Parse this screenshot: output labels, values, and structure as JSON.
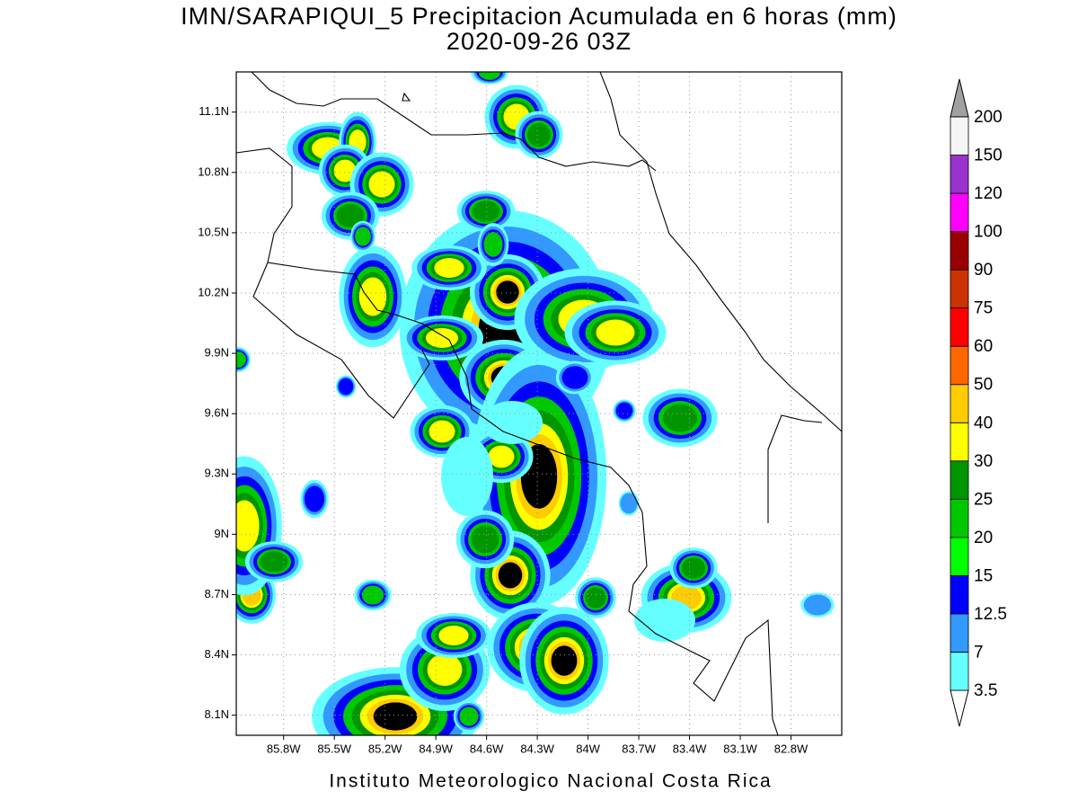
{
  "title": "IMN/SARAPIQUI_5 Precipitacion Acumulada en 6 horas (mm)",
  "subtitle": "2020-09-26 03Z",
  "footer": "Instituto Meteorologico Nacional Costa Rica",
  "map": {
    "xlim": [
      -86.08,
      -82.5
    ],
    "ylim": [
      8.0,
      11.3
    ],
    "xticks": [
      {
        "value": -85.8,
        "label": "85.8W"
      },
      {
        "value": -85.5,
        "label": "85.5W"
      },
      {
        "value": -85.2,
        "label": "85.2W"
      },
      {
        "value": -84.9,
        "label": "84.9W"
      },
      {
        "value": -84.6,
        "label": "84.6W"
      },
      {
        "value": -84.3,
        "label": "84.3W"
      },
      {
        "value": -84.0,
        "label": "84W"
      },
      {
        "value": -83.7,
        "label": "83.7W"
      },
      {
        "value": -83.4,
        "label": "83.4W"
      },
      {
        "value": -83.1,
        "label": "83.1W"
      },
      {
        "value": -82.8,
        "label": "82.8W"
      }
    ],
    "yticks": [
      {
        "value": 8.1,
        "label": "8.1N"
      },
      {
        "value": 8.4,
        "label": "8.4N"
      },
      {
        "value": 8.7,
        "label": "8.7N"
      },
      {
        "value": 9.0,
        "label": "9N"
      },
      {
        "value": 9.3,
        "label": "9.3N"
      },
      {
        "value": 9.6,
        "label": "9.6N"
      },
      {
        "value": 9.9,
        "label": "9.9N"
      },
      {
        "value": 10.2,
        "label": "10.2N"
      },
      {
        "value": 10.5,
        "label": "10.5N"
      },
      {
        "value": 10.8,
        "label": "10.8N"
      },
      {
        "value": 11.1,
        "label": "11.1N"
      }
    ],
    "grid": true
  },
  "colorbar": {
    "levels": [
      3.5,
      7,
      12.5,
      15,
      20,
      25,
      30,
      40,
      50,
      60,
      75,
      90,
      100,
      120,
      150,
      200
    ],
    "colors": [
      "#66ffff",
      "#3399ff",
      "#0000ff",
      "#00ff00",
      "#00c800",
      "#009600",
      "#ffff00",
      "#ffcc00",
      "#ff6600",
      "#ff0000",
      "#cc3300",
      "#990000",
      "#ff00ff",
      "#9933cc",
      "#f5f5f5"
    ],
    "over_color": "#a0a0a0",
    "under_color": "#ffffff"
  }
}
